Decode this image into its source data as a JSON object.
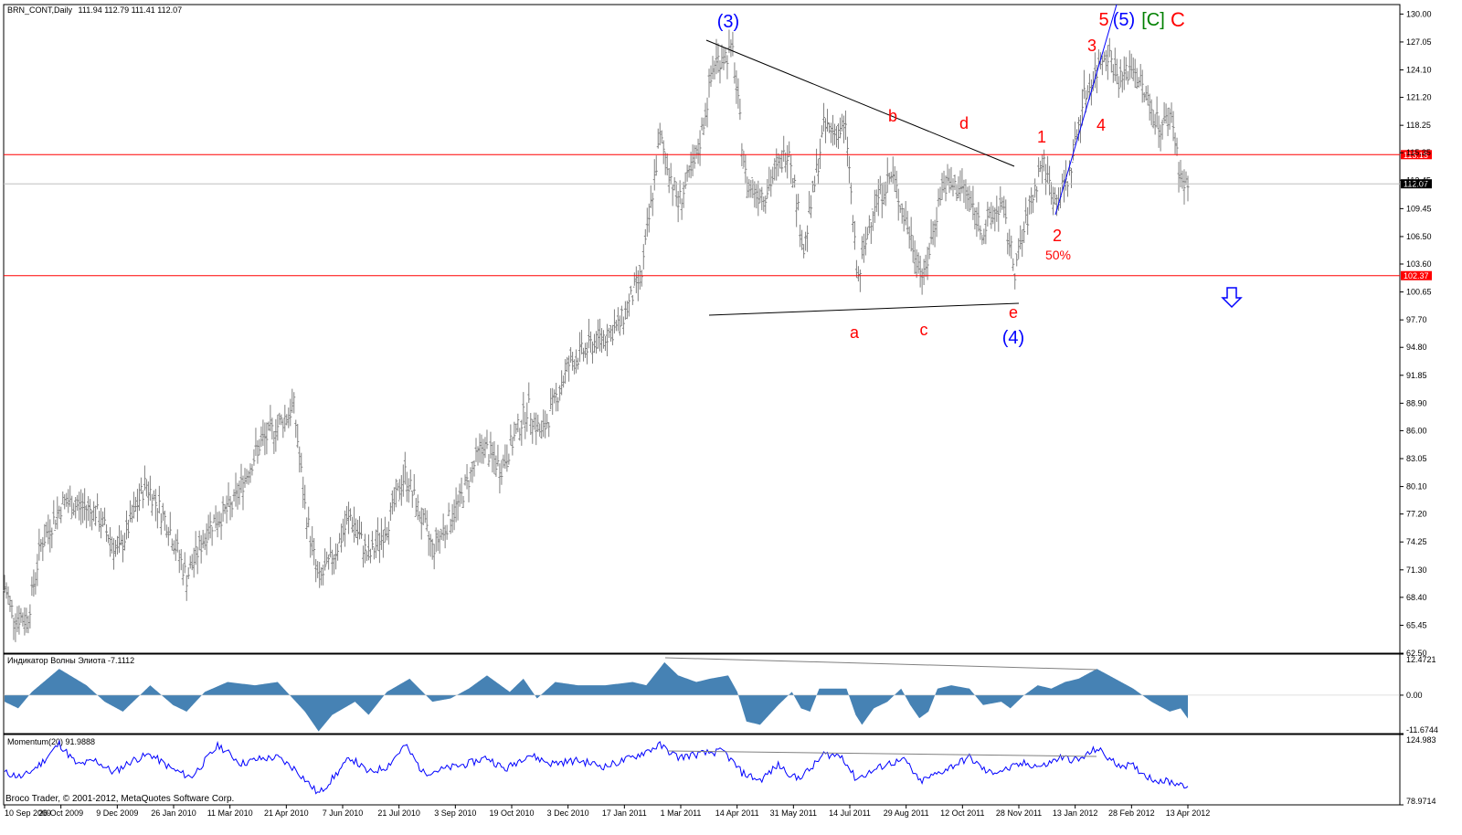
{
  "header": {
    "symbol": "BRN_CONT,Daily",
    "ohlc": "111.94 112.79 111.41 112.07"
  },
  "colors": {
    "bars": "#808080",
    "level_lines": "#ff0000",
    "price_line": "#c0c0c0",
    "wave_red": "#ff0000",
    "wave_blue": "#0000ff",
    "wave_green": "#008000",
    "histogram": "#4682b4",
    "momentum": "#0000ff",
    "trend_lines": "#000000"
  },
  "chart_data": [
    {
      "type": "bar",
      "pane": "price",
      "title": "BRN_CONT,Daily",
      "ylim": [
        62.5,
        131.0
      ],
      "yticks": [
        "130.00",
        "127.05",
        "124.10",
        "121.20",
        "118.25",
        "115.35",
        "112.45",
        "109.45",
        "106.50",
        "103.60",
        "100.65",
        "97.70",
        "94.80",
        "91.85",
        "88.90",
        "86.00",
        "83.05",
        "80.10",
        "77.20",
        "74.25",
        "71.30",
        "68.40",
        "65.45",
        "62.50"
      ],
      "current_price": 112.07,
      "current_price_label": "112.07",
      "levels": [
        {
          "value": 115.15,
          "label": "115.15"
        },
        {
          "value": 102.37,
          "label": "102.37"
        }
      ],
      "xticks": [
        "10 Sep 2009",
        "26 Oct 2009",
        "9 Dec 2009",
        "26 Jan 2010",
        "11 Mar 2010",
        "21 Apr 2010",
        "7 Jun 2010",
        "21 Jul 2010",
        "3 Sep 2010",
        "19 Oct 2010",
        "3 Dec 2010",
        "17 Jan 2011",
        "1 Mar 2011",
        "14 Apr 2011",
        "31 May 2011",
        "14 Jul 2011",
        "29 Aug 2011",
        "12 Oct 2011",
        "28 Nov 2011",
        "13 Jan 2012",
        "28 Feb 2012",
        "13 Apr 2012"
      ],
      "anchors": [
        [
          0,
          69.5
        ],
        [
          10,
          66.5
        ],
        [
          25,
          66.0
        ],
        [
          40,
          74.0
        ],
        [
          65,
          78.5
        ],
        [
          100,
          77.5
        ],
        [
          125,
          73.0
        ],
        [
          155,
          80.5
        ],
        [
          180,
          76.0
        ],
        [
          200,
          70.5
        ],
        [
          225,
          76.0
        ],
        [
          250,
          78.0
        ],
        [
          280,
          84.5
        ],
        [
          300,
          86.5
        ],
        [
          318,
          88.5
        ],
        [
          330,
          78.0
        ],
        [
          345,
          70.0
        ],
        [
          360,
          72.5
        ],
        [
          380,
          77.0
        ],
        [
          400,
          72.5
        ],
        [
          420,
          76.0
        ],
        [
          440,
          81.5
        ],
        [
          470,
          73.5
        ],
        [
          500,
          78.5
        ],
        [
          525,
          84.5
        ],
        [
          545,
          82.0
        ],
        [
          575,
          88.5
        ],
        [
          590,
          85.5
        ],
        [
          620,
          93.0
        ],
        [
          650,
          95.5
        ],
        [
          675,
          97.0
        ],
        [
          700,
          102.5
        ],
        [
          720,
          117.0
        ],
        [
          740,
          110.0
        ],
        [
          760,
          114.5
        ],
        [
          780,
          125.0
        ],
        [
          800,
          126.0
        ],
        [
          815,
          112.0
        ],
        [
          835,
          111.0
        ],
        [
          862,
          116.0
        ],
        [
          878,
          105.0
        ],
        [
          900,
          118.0
        ],
        [
          925,
          117.5
        ],
        [
          937,
          101.5
        ],
        [
          955,
          110.0
        ],
        [
          975,
          113.0
        ],
        [
          1000,
          105.0
        ],
        [
          1010,
          102.0
        ],
        [
          1030,
          112.0
        ],
        [
          1055,
          111.5
        ],
        [
          1075,
          107.0
        ],
        [
          1095,
          110.0
        ],
        [
          1110,
          103.0
        ],
        [
          1125,
          109.0
        ],
        [
          1140,
          114.5
        ],
        [
          1155,
          110.0
        ],
        [
          1170,
          113.0
        ],
        [
          1185,
          121.0
        ],
        [
          1200,
          124.0
        ],
        [
          1210,
          126.5
        ],
        [
          1225,
          123.0
        ],
        [
          1240,
          124.5
        ],
        [
          1255,
          121.0
        ],
        [
          1270,
          118.0
        ],
        [
          1282,
          119.5
        ],
        [
          1290,
          114.0
        ],
        [
          1296,
          111.5
        ],
        [
          1300,
          112.1
        ]
      ],
      "annotations": [
        {
          "text": "(3)",
          "color": "blue"
        },
        {
          "text": "5",
          "color": "red"
        },
        {
          "text": "(5)",
          "color": "blue"
        },
        {
          "text": "[C]",
          "color": "green"
        },
        {
          "text": "C",
          "color": "red"
        },
        {
          "text": "3",
          "color": "red"
        },
        {
          "text": "4",
          "color": "red"
        },
        {
          "text": "1",
          "color": "red"
        },
        {
          "text": "b",
          "color": "red"
        },
        {
          "text": "d",
          "color": "red"
        },
        {
          "text": "2",
          "color": "red"
        },
        {
          "text": "50%",
          "color": "red"
        },
        {
          "text": "a",
          "color": "red"
        },
        {
          "text": "c",
          "color": "red"
        },
        {
          "text": "e",
          "color": "red"
        },
        {
          "text": "(4)",
          "color": "blue"
        }
      ],
      "arrow": "down"
    },
    {
      "type": "area",
      "pane": "elliott",
      "title": "Индикатор Волны Элиота -7.1112",
      "ylim": [
        -11.6744,
        12.4721
      ],
      "yticks": [
        "12.4721",
        "0.00",
        "-11.6744"
      ],
      "anchors": [
        [
          0,
          -2
        ],
        [
          15,
          -4
        ],
        [
          30,
          1
        ],
        [
          60,
          8
        ],
        [
          90,
          3
        ],
        [
          110,
          -2
        ],
        [
          130,
          -5
        ],
        [
          160,
          3
        ],
        [
          185,
          -3
        ],
        [
          200,
          -5
        ],
        [
          220,
          1
        ],
        [
          245,
          4
        ],
        [
          275,
          3
        ],
        [
          300,
          4
        ],
        [
          330,
          -5
        ],
        [
          345,
          -11
        ],
        [
          360,
          -6
        ],
        [
          385,
          -2
        ],
        [
          400,
          -6
        ],
        [
          420,
          1
        ],
        [
          445,
          5
        ],
        [
          470,
          -2
        ],
        [
          490,
          -1
        ],
        [
          510,
          2
        ],
        [
          530,
          6
        ],
        [
          555,
          1
        ],
        [
          570,
          5
        ],
        [
          585,
          -1
        ],
        [
          605,
          4
        ],
        [
          630,
          3
        ],
        [
          660,
          3
        ],
        [
          690,
          4
        ],
        [
          705,
          3
        ],
        [
          725,
          10
        ],
        [
          740,
          6
        ],
        [
          760,
          4
        ],
        [
          775,
          5
        ],
        [
          795,
          6
        ],
        [
          805,
          1
        ],
        [
          815,
          -8
        ],
        [
          830,
          -9
        ],
        [
          850,
          -3
        ],
        [
          865,
          1
        ],
        [
          875,
          -4
        ],
        [
          885,
          -5
        ],
        [
          895,
          2
        ],
        [
          915,
          2
        ],
        [
          925,
          2
        ],
        [
          935,
          -6
        ],
        [
          942,
          -9
        ],
        [
          955,
          -4
        ],
        [
          970,
          -2
        ],
        [
          985,
          2
        ],
        [
          995,
          -3
        ],
        [
          1005,
          -7
        ],
        [
          1015,
          -5
        ],
        [
          1025,
          2
        ],
        [
          1040,
          3
        ],
        [
          1060,
          2
        ],
        [
          1075,
          -3
        ],
        [
          1095,
          -2
        ],
        [
          1105,
          -4
        ],
        [
          1120,
          0
        ],
        [
          1135,
          3
        ],
        [
          1150,
          2
        ],
        [
          1165,
          4
        ],
        [
          1180,
          5
        ],
        [
          1200,
          8
        ],
        [
          1220,
          5
        ],
        [
          1240,
          2
        ],
        [
          1260,
          -2
        ],
        [
          1280,
          -5
        ],
        [
          1292,
          -4
        ],
        [
          1300,
          -7.1
        ]
      ]
    },
    {
      "type": "line",
      "pane": "momentum",
      "title": "Momentum(20) 91.9888",
      "ylim": [
        78.9714,
        124.983
      ],
      "yticks": [
        "124.983",
        "78.9714"
      ],
      "anchors": [
        [
          0,
          100
        ],
        [
          20,
          97
        ],
        [
          40,
          106
        ],
        [
          60,
          119
        ],
        [
          80,
          105
        ],
        [
          100,
          108
        ],
        [
          120,
          100
        ],
        [
          140,
          108
        ],
        [
          160,
          112
        ],
        [
          185,
          102
        ],
        [
          205,
          97
        ],
        [
          235,
          118
        ],
        [
          260,
          106
        ],
        [
          280,
          109
        ],
        [
          300,
          110
        ],
        [
          320,
          102
        ],
        [
          345,
          86
        ],
        [
          360,
          96
        ],
        [
          380,
          110
        ],
        [
          400,
          100
        ],
        [
          420,
          104
        ],
        [
          440,
          118
        ],
        [
          460,
          100
        ],
        [
          480,
          102
        ],
        [
          510,
          106
        ],
        [
          530,
          110
        ],
        [
          550,
          102
        ],
        [
          575,
          112
        ],
        [
          600,
          106
        ],
        [
          630,
          108
        ],
        [
          660,
          104
        ],
        [
          690,
          110
        ],
        [
          720,
          118
        ],
        [
          740,
          110
        ],
        [
          760,
          112
        ],
        [
          790,
          114
        ],
        [
          810,
          100
        ],
        [
          830,
          95
        ],
        [
          850,
          105
        ],
        [
          870,
          96
        ],
        [
          885,
          102
        ],
        [
          900,
          112
        ],
        [
          920,
          111
        ],
        [
          935,
          96
        ],
        [
          950,
          100
        ],
        [
          970,
          106
        ],
        [
          990,
          108
        ],
        [
          1005,
          94
        ],
        [
          1020,
          98
        ],
        [
          1040,
          104
        ],
        [
          1060,
          110
        ],
        [
          1080,
          100
        ],
        [
          1100,
          102
        ],
        [
          1120,
          106
        ],
        [
          1140,
          104
        ],
        [
          1160,
          110
        ],
        [
          1180,
          108
        ],
        [
          1200,
          116
        ],
        [
          1220,
          106
        ],
        [
          1240,
          104
        ],
        [
          1260,
          96
        ],
        [
          1280,
          94
        ],
        [
          1300,
          91.99
        ]
      ]
    }
  ],
  "footer": {
    "copyright": "Broco Trader, © 2001-2012, MetaQuotes Software Corp."
  }
}
